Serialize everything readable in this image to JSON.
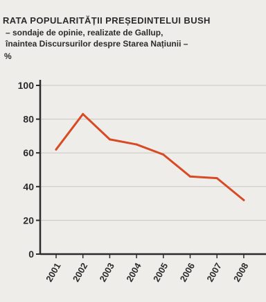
{
  "chart_data": {
    "type": "line",
    "title": "RATA POPULARITĂȚII PREȘEDINTELUI BUSH",
    "subtitle_lines": [
      "– sondaje de opinie, realizate de Gallup,",
      "înaintea Discursurilor despre Starea Națiunii –"
    ],
    "ylabel": "%",
    "ylim": [
      0,
      100
    ],
    "yticks": [
      0,
      20,
      40,
      60,
      80,
      100
    ],
    "categories": [
      "2001",
      "2002",
      "2003",
      "2004",
      "2005",
      "2006",
      "2007",
      "2008"
    ],
    "series": [
      {
        "values": [
          62,
          83,
          68,
          65,
          59,
          46,
          45,
          32
        ]
      }
    ],
    "grid": true,
    "line_color": "#d84a24"
  }
}
